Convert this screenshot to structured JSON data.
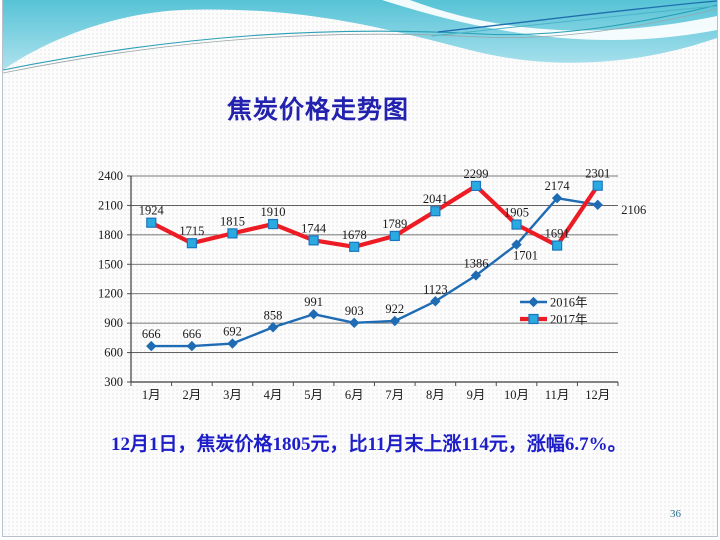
{
  "slide": {
    "title": "焦炭价格走势图",
    "caption": "12月1日，焦炭价格1805元，比11月末上涨114元，涨幅6.7%。",
    "page_number": "36",
    "colors": {
      "title": "#2222AE",
      "caption": "#1E1EC8",
      "page_number": "#31708F",
      "axis": "#4d4d4d",
      "banner_teal_top": "#56C3D6",
      "banner_teal_bottom": "#AEE2EE"
    }
  },
  "chart_data": {
    "type": "line",
    "title": "焦炭价格走势图",
    "categories": [
      "1月",
      "2月",
      "3月",
      "4月",
      "5月",
      "6月",
      "7月",
      "8月",
      "9月",
      "10月",
      "11月",
      "12月"
    ],
    "series": [
      {
        "name": "2016年",
        "color": "#1F6CB4",
        "marker": "diamond",
        "marker_fill": "#1F6CB4",
        "marker_stroke": "#1F6CB4",
        "values": [
          666,
          666,
          692,
          858,
          991,
          903,
          922,
          1123,
          1386,
          1701,
          2174,
          2106
        ]
      },
      {
        "name": "2017年",
        "color": "#ED1C24",
        "marker": "square",
        "marker_fill": "#29ABE2",
        "marker_stroke": "#1B75BC",
        "values": [
          1924,
          1715,
          1815,
          1910,
          1744,
          1678,
          1789,
          2041,
          2299,
          1905,
          1691,
          2301
        ]
      }
    ],
    "ylim": [
      300,
      2400
    ],
    "ytick_step": 300,
    "grid": true,
    "legend_position": "middle-right",
    "xlabel": "",
    "ylabel": ""
  }
}
